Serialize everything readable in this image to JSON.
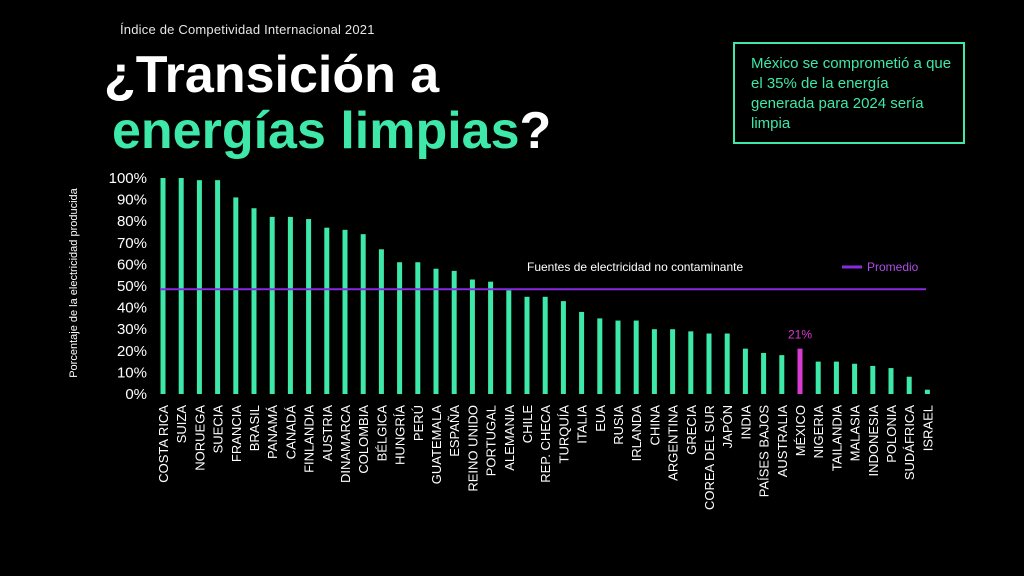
{
  "header": {
    "supertitle": "Índice de Competividad Internacional 2021",
    "title_line1": "¿Transición a",
    "title_line2_highlight": "energías limpias",
    "title_line2_end": "?"
  },
  "callout": {
    "text": "México se comprometió a que el 35% de la energía generada para 2024 sería limpia"
  },
  "colors": {
    "bar": "#3ee8a8",
    "highlight_bar": "#d93ad0",
    "average_line": "#8a2be2",
    "background": "#000000"
  },
  "chart_data": {
    "type": "bar",
    "ylabel": "Porcentaje de la electricidad producida",
    "ylim": [
      0,
      100
    ],
    "yticks": [
      "100%",
      "90%",
      "80%",
      "70%",
      "60%",
      "50%",
      "40%",
      "30%",
      "20%",
      "10%",
      "0%"
    ],
    "categories": [
      "COSTA RICA",
      "SUIZA",
      "NORUEGA",
      "SUECIA",
      "FRANCIA",
      "BRASIL",
      "PANAMÁ",
      "CANADÁ",
      "FINLANDIA",
      "AUSTRIA",
      "DINAMARCA",
      "COLOMBIA",
      "BÉLGICA",
      "HUNGRÍA",
      "PERÚ",
      "GUATEMALA",
      "ESPAÑA",
      "REINO UNIDO",
      "PORTUGAL",
      "ALEMANIA",
      "CHILE",
      "REP. CHECA",
      "TURQUÍA",
      "ITALIA",
      "EUA",
      "RUSIA",
      "IRLANDA",
      "CHINA",
      "ARGENTINA",
      "GRECIA",
      "COREA DEL SUR",
      "JAPÓN",
      "INDIA",
      "PAÍSES BAJOS",
      "AUSTRALIA",
      "MÉXICO",
      "NIGERIA",
      "TAILANDIA",
      "MALASIA",
      "INDONESIA",
      "POLONIA",
      "SUDÁFRICA",
      "ISRAEL"
    ],
    "values": [
      100,
      100,
      99,
      99,
      91,
      86,
      82,
      82,
      81,
      77,
      76,
      74,
      67,
      61,
      61,
      58,
      57,
      53,
      52,
      48,
      45,
      45,
      43,
      38,
      35,
      34,
      34,
      30,
      30,
      29,
      28,
      28,
      21,
      19,
      18,
      21,
      15,
      15,
      14,
      13,
      12,
      8,
      2
    ],
    "highlight": {
      "category": "MÉXICO",
      "label": "21%"
    },
    "series_legend": "Fuentes de electricidad no contaminante",
    "average": {
      "name": "Promedio",
      "value": 48.5
    }
  }
}
